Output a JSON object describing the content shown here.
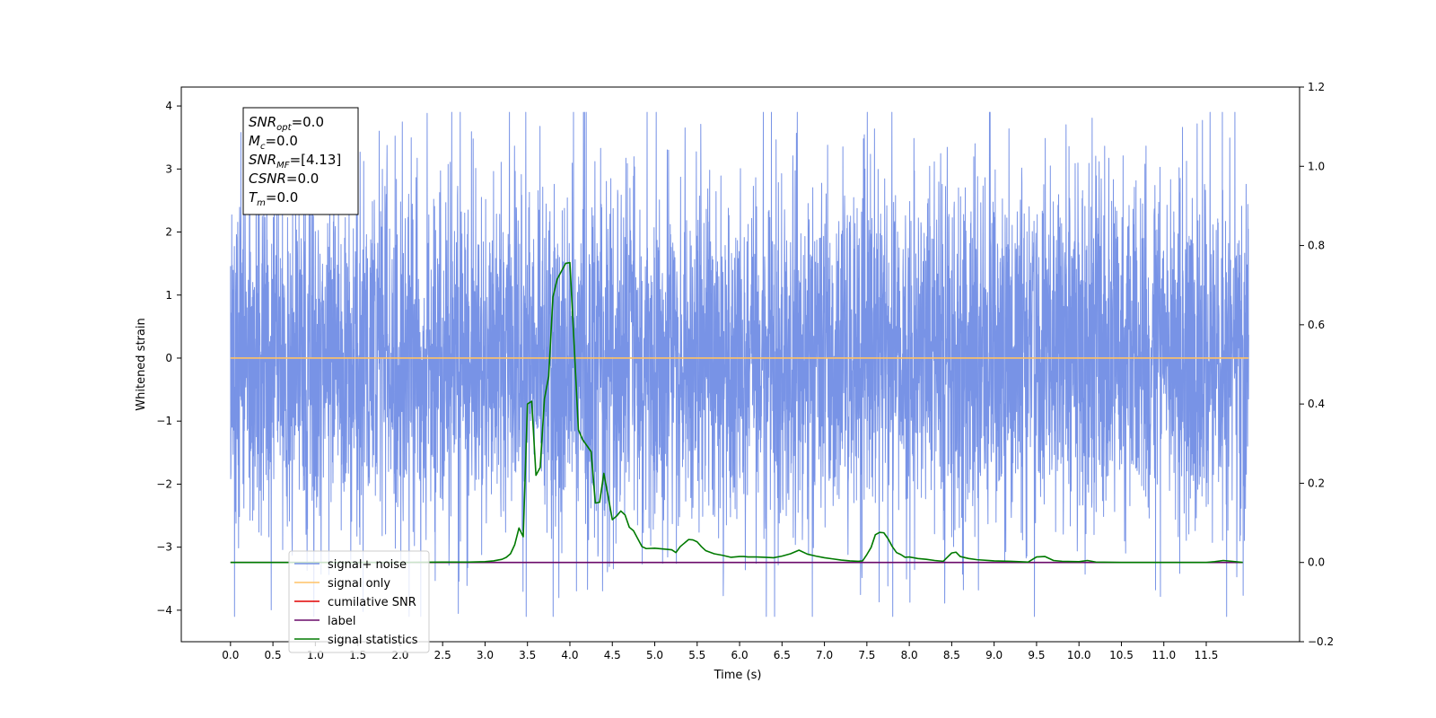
{
  "chart_data": {
    "type": "line",
    "title": "",
    "xlabel": "Time (s)",
    "ylabel": "Whitened strain",
    "xlim": [
      -0.58,
      12.6
    ],
    "ylim": [
      -4.5,
      4.3
    ],
    "y2lim": [
      -0.2,
      1.2
    ],
    "grid": false,
    "legend_position": "lower-left",
    "x_ticks": [
      "0.0",
      "0.5",
      "1.0",
      "1.5",
      "2.0",
      "2.5",
      "3.0",
      "3.5",
      "4.0",
      "4.5",
      "5.0",
      "5.5",
      "6.0",
      "6.5",
      "7.0",
      "7.5",
      "8.0",
      "8.5",
      "9.0",
      "9.5",
      "10.0",
      "10.5",
      "11.0",
      "11.5"
    ],
    "y_ticks": [
      "4",
      "3",
      "2",
      "1",
      "0",
      "−1",
      "−2",
      "−3",
      "−4"
    ],
    "y2_ticks": [
      "1.2",
      "1.0",
      "0.8",
      "0.6",
      "0.4",
      "0.2",
      "0.0",
      "−0.2"
    ],
    "stats_box": [
      {
        "sym": "SNR",
        "sub": "opt",
        "value": "=0.0"
      },
      {
        "sym": "M",
        "sub": "c",
        "value": "=0.0"
      },
      {
        "sym": "SNR",
        "sub": "MF",
        "value": "=[4.13]"
      },
      {
        "sym": "CSNR",
        "sub": "",
        "value": "=0.0"
      },
      {
        "sym": "T",
        "sub": "m",
        "value": "=0.0"
      }
    ],
    "legend": [
      {
        "label": "signal+ noise",
        "color": "#7893e6"
      },
      {
        "label": "signal only",
        "color": "#ffc266"
      },
      {
        "label": "cumilative SNR",
        "color": "#e00000"
      },
      {
        "label": "label",
        "color": "#6a0a6a"
      },
      {
        "label": "signal statistics",
        "color": "#007a00"
      }
    ],
    "series": [
      {
        "name": "signal+ noise",
        "axis": "left",
        "color": "#7893e6",
        "x_range": [
          0.0,
          12.0
        ],
        "rendering": "dense noise band",
        "typical_range": [
          -1.5,
          1.5
        ],
        "min": -4.1,
        "max": 3.9
      },
      {
        "name": "signal only",
        "axis": "left",
        "color": "#ffc266",
        "x": [
          0.0,
          12.0
        ],
        "y": [
          0.0,
          0.0
        ]
      },
      {
        "name": "label",
        "axis": "right",
        "color": "#6a0a6a",
        "x": [
          0.0,
          11.93
        ],
        "y": [
          0.0,
          0.0
        ]
      },
      {
        "name": "signal statistics",
        "axis": "right",
        "color": "#007a00",
        "x": [
          0.0,
          0.5,
          1.0,
          1.5,
          2.0,
          2.5,
          2.8,
          3.0,
          3.1,
          3.2,
          3.25,
          3.3,
          3.35,
          3.4,
          3.45,
          3.5,
          3.55,
          3.6,
          3.65,
          3.7,
          3.75,
          3.8,
          3.85,
          3.9,
          3.95,
          4.0,
          4.05,
          4.1,
          4.15,
          4.2,
          4.25,
          4.3,
          4.35,
          4.4,
          4.45,
          4.5,
          4.55,
          4.6,
          4.65,
          4.7,
          4.75,
          4.8,
          4.85,
          4.9,
          5.0,
          5.1,
          5.2,
          5.25,
          5.3,
          5.4,
          5.45,
          5.5,
          5.55,
          5.6,
          5.7,
          5.8,
          5.9,
          6.0,
          6.05,
          6.1,
          6.2,
          6.3,
          6.4,
          6.5,
          6.6,
          6.7,
          6.8,
          6.9,
          7.0,
          7.1,
          7.2,
          7.3,
          7.4,
          7.45,
          7.5,
          7.55,
          7.6,
          7.65,
          7.7,
          7.75,
          7.8,
          7.85,
          7.9,
          7.95,
          8.0,
          8.1,
          8.2,
          8.3,
          8.4,
          8.5,
          8.55,
          8.6,
          8.7,
          8.8,
          9.0,
          9.2,
          9.4,
          9.5,
          9.6,
          9.7,
          9.8,
          10.0,
          10.1,
          10.2,
          10.5,
          11.0,
          11.5,
          11.6,
          11.7,
          11.8,
          11.93
        ],
        "y": [
          0.0,
          0.0,
          0.0,
          0.0,
          0.0,
          0.001,
          0.001,
          0.002,
          0.004,
          0.008,
          0.013,
          0.022,
          0.045,
          0.087,
          0.065,
          0.4,
          0.407,
          0.22,
          0.24,
          0.413,
          0.47,
          0.67,
          0.715,
          0.735,
          0.755,
          0.757,
          0.55,
          0.335,
          0.31,
          0.295,
          0.28,
          0.15,
          0.152,
          0.225,
          0.168,
          0.108,
          0.117,
          0.13,
          0.12,
          0.089,
          0.08,
          0.06,
          0.04,
          0.035,
          0.036,
          0.034,
          0.032,
          0.025,
          0.04,
          0.058,
          0.057,
          0.052,
          0.04,
          0.03,
          0.022,
          0.018,
          0.013,
          0.015,
          0.015,
          0.014,
          0.014,
          0.013,
          0.012,
          0.016,
          0.022,
          0.031,
          0.021,
          0.016,
          0.012,
          0.009,
          0.006,
          0.004,
          0.003,
          0.004,
          0.02,
          0.038,
          0.07,
          0.076,
          0.075,
          0.06,
          0.04,
          0.025,
          0.02,
          0.013,
          0.014,
          0.01,
          0.008,
          0.005,
          0.003,
          0.024,
          0.026,
          0.015,
          0.01,
          0.007,
          0.004,
          0.003,
          0.001,
          0.014,
          0.015,
          0.005,
          0.003,
          0.002,
          0.005,
          0.001,
          0.0,
          0.0,
          0.0,
          0.002,
          0.005,
          0.003,
          0.0
        ]
      }
    ]
  }
}
